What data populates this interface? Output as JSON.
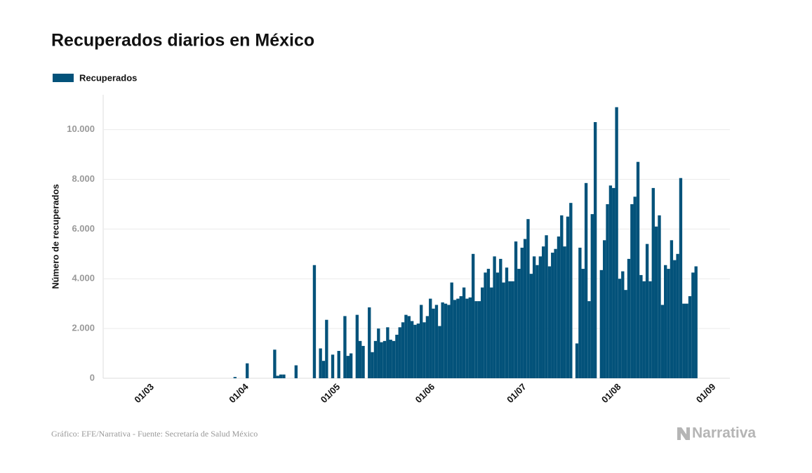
{
  "chart_data": {
    "type": "bar",
    "title": "Recuperados diarios en México",
    "y_label": "Número de recuperados",
    "source": "Gráfico: EFE/Narrativa - Fuente: Secretaría de Salud México",
    "logo": "Narrativa",
    "series": [
      {
        "name": "Recuperados",
        "color": "#03527a",
        "values": [
          0,
          0,
          0,
          0,
          0,
          0,
          0,
          0,
          0,
          0,
          0,
          0,
          0,
          0,
          0,
          0,
          0,
          0,
          0,
          0,
          0,
          0,
          0,
          0,
          0,
          0,
          0,
          0,
          0,
          0,
          0,
          0,
          0,
          0,
          0,
          0,
          0,
          0,
          0,
          0,
          0,
          0,
          0,
          50,
          0,
          0,
          0,
          600,
          0,
          0,
          0,
          0,
          0,
          0,
          0,
          0,
          1150,
          100,
          150,
          150,
          0,
          0,
          0,
          520,
          0,
          0,
          0,
          0,
          0,
          4550,
          0,
          1200,
          700,
          2350,
          0,
          950,
          0,
          1100,
          0,
          2500,
          900,
          1000,
          0,
          2550,
          1500,
          1300,
          0,
          2850,
          1050,
          1500,
          2000,
          1450,
          1500,
          2050,
          1550,
          1500,
          1750,
          2050,
          2250,
          2550,
          2500,
          2300,
          2150,
          2200,
          2950,
          2250,
          2500,
          3200,
          2800,
          2950,
          2100,
          3050,
          3000,
          2950,
          3850,
          3150,
          3200,
          3300,
          3650,
          3200,
          3250,
          5000,
          3100,
          3100,
          3650,
          4250,
          4400,
          3650,
          4900,
          4250,
          4800,
          3850,
          4450,
          3900,
          3900,
          5500,
          4400,
          5250,
          5600,
          6400,
          4200,
          4900,
          4550,
          4900,
          5300,
          5750,
          4500,
          5050,
          5200,
          5700,
          6550,
          5300,
          6500,
          7050,
          0,
          1400,
          5250,
          4400,
          7850,
          3100,
          6600,
          10300,
          0,
          4350,
          5550,
          7000,
          7750,
          7650,
          10900,
          4000,
          4300,
          3550,
          4800,
          7000,
          7300,
          8700,
          4150,
          3900,
          5400,
          3900,
          7650,
          6100,
          6550,
          2950,
          4550,
          4400,
          5550,
          4750,
          5000,
          8050,
          3000,
          3000,
          3300,
          4250,
          4500,
          0,
          0
        ]
      }
    ],
    "categories": [
      null,
      null,
      null,
      null,
      null,
      null,
      null,
      null,
      null,
      null,
      null,
      null,
      "01/03",
      null,
      null,
      null,
      null,
      null,
      null,
      null,
      null,
      null,
      null,
      null,
      null,
      null,
      null,
      null,
      null,
      null,
      null,
      null,
      null,
      null,
      null,
      null,
      null,
      null,
      null,
      null,
      null,
      null,
      null,
      "01/04",
      null,
      null,
      null,
      null,
      null,
      null,
      null,
      null,
      null,
      null,
      null,
      null,
      null,
      null,
      null,
      null,
      null,
      null,
      null,
      null,
      null,
      null,
      null,
      null,
      null,
      null,
      null,
      null,
      null,
      "01/05",
      null,
      null,
      null,
      null,
      null,
      null,
      null,
      null,
      null,
      null,
      null,
      null,
      null,
      null,
      null,
      null,
      null,
      null,
      null,
      null,
      null,
      null,
      null,
      null,
      null,
      null,
      null,
      null,
      null,
      null,
      "01/06",
      null,
      null,
      null,
      null,
      null,
      null,
      null,
      null,
      null,
      null,
      null,
      null,
      null,
      null,
      null,
      null,
      null,
      null,
      null,
      null,
      null,
      null,
      null,
      null,
      null,
      null,
      null,
      null,
      null,
      "01/07",
      null,
      null,
      null,
      null,
      null,
      null,
      null,
      null,
      null,
      null,
      null,
      null,
      null,
      null,
      null,
      null,
      null,
      null,
      null,
      null,
      null,
      null,
      null,
      null,
      null,
      null,
      null,
      null,
      null,
      null,
      "01/08",
      null,
      null,
      null,
      null,
      null,
      null,
      null,
      null,
      null,
      null,
      null,
      null,
      null,
      null,
      null,
      null,
      null,
      null,
      null,
      null,
      null,
      null,
      null,
      null,
      null,
      null,
      null,
      null,
      null,
      null,
      "01/09"
    ],
    "ylim": [
      0,
      11400
    ],
    "yticks": [
      0,
      {
        "value": 2000,
        "label": "2.000"
      },
      {
        "value": 4000,
        "label": "4.000"
      },
      {
        "value": 6000,
        "label": "6.000"
      },
      {
        "value": 8000,
        "label": "8.000"
      },
      {
        "value": 10000,
        "label": "10.000"
      }
    ],
    "grid": true,
    "legend": "top-left"
  }
}
